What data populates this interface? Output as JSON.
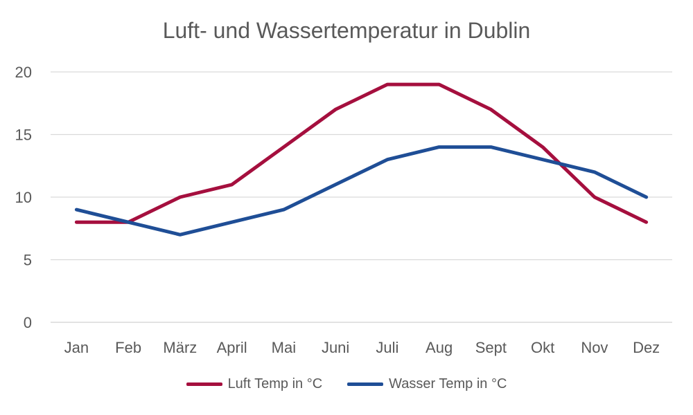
{
  "chart_data": {
    "type": "line",
    "title": "Luft- und Wassertemperatur in Dublin",
    "categories": [
      "Jan",
      "Feb",
      "März",
      "April",
      "Mai",
      "Juni",
      "Juli",
      "Aug",
      "Sept",
      "Okt",
      "Nov",
      "Dez"
    ],
    "series": [
      {
        "name": "Luft Temp in °C",
        "color": "#A50F3E",
        "values": [
          8,
          8,
          10,
          11,
          14,
          17,
          19,
          19,
          17,
          14,
          10,
          8
        ]
      },
      {
        "name": "Wasser Temp in °C",
        "color": "#1F4E96",
        "values": [
          9,
          8,
          7,
          8,
          9,
          11,
          13,
          14,
          14,
          13,
          12,
          10
        ]
      }
    ],
    "ylim": [
      0,
      20
    ],
    "yticks": [
      0,
      5,
      10,
      15,
      20
    ],
    "grid": true,
    "legend": "bottom"
  }
}
